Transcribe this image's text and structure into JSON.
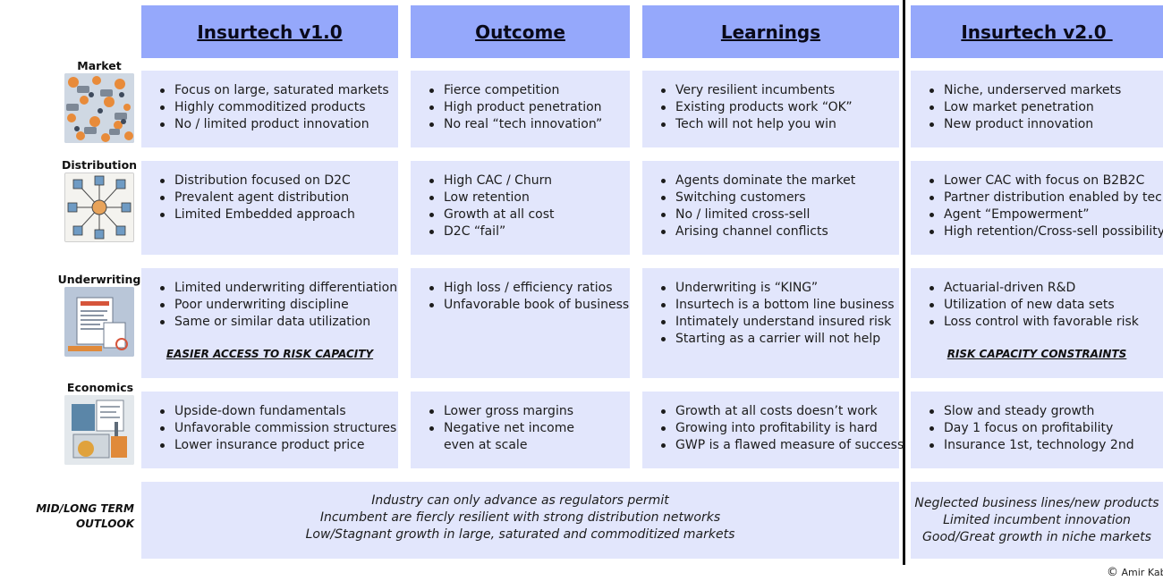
{
  "colors": {
    "header": "#95a8fb",
    "cell": "#e2e6fc",
    "divider": "#111111"
  },
  "headers": [
    "Insurtech v1.0",
    "Outcome",
    "Learnings",
    "Insurtech v2.0 "
  ],
  "rows": [
    {
      "label": "Market",
      "icon": "market-illustration",
      "cells": [
        {
          "items": [
            "Focus on large, saturated markets",
            "Highly commoditized products",
            "No / limited product innovation"
          ]
        },
        {
          "items": [
            "Fierce competition",
            "High product penetration",
            "No real “tech innovation”"
          ]
        },
        {
          "items": [
            "Very resilient incumbents",
            "Existing products work “OK”",
            "Tech will not help you win"
          ]
        },
        {
          "items": [
            "Niche, underserved markets",
            "Low market penetration",
            "New product innovation"
          ]
        }
      ]
    },
    {
      "label": "Distribution",
      "icon": "distribution-network-illustration",
      "cells": [
        {
          "items": [
            "Distribution focused on D2C",
            "Prevalent agent distribution",
            "Limited Embedded approach"
          ]
        },
        {
          "items": [
            "High CAC / Churn",
            "Low retention",
            "Growth at all cost",
            "D2C “fail”"
          ]
        },
        {
          "items": [
            "Agents dominate the market",
            "Switching customers",
            "No / limited cross-sell",
            "Arising channel conflicts"
          ]
        },
        {
          "items": [
            "Lower CAC with focus on B2B2C",
            "Partner distribution enabled by tech",
            "Agent “Empowerment”",
            "High retention/Cross-sell possibility"
          ]
        }
      ]
    },
    {
      "label": "Underwriting",
      "icon": "underwriting-document-illustration",
      "cells": [
        {
          "items": [
            "Limited underwriting differentiation",
            "Poor underwriting discipline",
            "Same or similar data utilization"
          ],
          "note": "EASIER ACCESS TO RISK CAPACITY"
        },
        {
          "items": [
            "High loss / efficiency ratios",
            "Unfavorable book of business"
          ]
        },
        {
          "items": [
            "Underwriting is “KING”",
            "Insurtech is a bottom line business",
            "Intimately understand insured risk",
            "Starting as a carrier will not help"
          ]
        },
        {
          "items": [
            "Actuarial-driven R&D",
            "Utilization of new data sets",
            "Loss control with favorable risk"
          ],
          "note": "RISK CAPACITY CONSTRAINTS "
        }
      ]
    },
    {
      "label": "Economics",
      "icon": "economics-finance-illustration",
      "cells": [
        {
          "items": [
            "Upside-down fundamentals",
            "Unfavorable commission structures",
            "Lower insurance product price"
          ]
        },
        {
          "items": [
            "Lower gross margins",
            "Negative net income",
            "even at scale"
          ],
          "bullets": [
            true,
            true,
            false
          ]
        },
        {
          "items": [
            "Growth at all costs doesn’t work",
            "Growing into profitability is hard",
            "GWP is a flawed measure of success"
          ]
        },
        {
          "items": [
            "Slow and steady growth",
            "Day 1 focus on profitability",
            "Insurance 1st, technology 2nd"
          ]
        }
      ]
    }
  ],
  "outlook": {
    "label_line1": "MID/LONG TERM",
    "label_line2": "OUTLOOK",
    "v1": [
      "Industry can only advance as regulators permit",
      "Incumbent are fiercly resilient with strong distribution networks",
      "Low/Stagnant growth in large, saturated and commoditized markets"
    ],
    "v2": [
      "Neglected business lines/new products",
      "Limited incumbent innovation",
      "Good/Great growth in niche markets"
    ]
  },
  "copyright": {
    "symbol": "©",
    "text": "Amir Kab"
  }
}
